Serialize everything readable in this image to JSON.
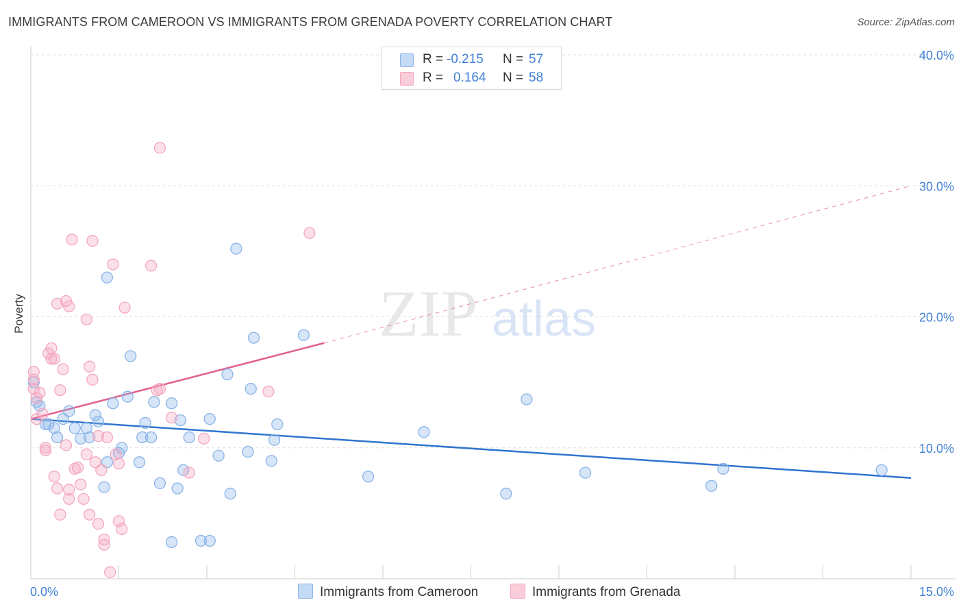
{
  "chart_data": {
    "type": "scatter",
    "title": "IMMIGRANTS FROM CAMEROON VS IMMIGRANTS FROM GRENADA POVERTY CORRELATION CHART",
    "source": "Source: ZipAtlas.com",
    "xlabel": "",
    "ylabel": "Poverty",
    "xlim": [
      0,
      15
    ],
    "ylim": [
      0,
      40
    ],
    "x_tick_labels": [
      "0.0%",
      "15.0%"
    ],
    "y_tick_labels": [
      "10.0%",
      "20.0%",
      "30.0%",
      "40.0%"
    ],
    "y_ticks": [
      10,
      20,
      30,
      40
    ],
    "watermark": {
      "zip": "ZIP",
      "atlas": "atlas"
    },
    "legend": [
      {
        "r_label": "R =",
        "r_value": "-0.215",
        "n_label": "N =",
        "n_value": "57"
      },
      {
        "r_label": "R =",
        "r_value": "0.164",
        "n_label": "N =",
        "n_value": "58"
      }
    ],
    "series": [
      {
        "name": "Immigrants from Cameroon",
        "color": "#8ab4e8",
        "line_color": "#2f74d0",
        "trend": {
          "x0": 0,
          "y0": 12.2,
          "x1": 15,
          "y1": 7.7
        },
        "points": [
          [
            0.05,
            15.0
          ],
          [
            0.1,
            13.5
          ],
          [
            0.15,
            13.2
          ],
          [
            0.25,
            11.8
          ],
          [
            0.3,
            11.8
          ],
          [
            0.4,
            11.5
          ],
          [
            0.45,
            10.8
          ],
          [
            0.55,
            12.2
          ],
          [
            0.65,
            12.8
          ],
          [
            0.75,
            11.5
          ],
          [
            0.85,
            10.7
          ],
          [
            0.95,
            11.5
          ],
          [
            1.0,
            10.8
          ],
          [
            1.1,
            12.5
          ],
          [
            1.15,
            12.0
          ],
          [
            1.3,
            23.0
          ],
          [
            1.5,
            9.6
          ],
          [
            1.4,
            13.4
          ],
          [
            1.65,
            13.9
          ],
          [
            1.7,
            17.0
          ],
          [
            1.9,
            10.8
          ],
          [
            1.95,
            11.9
          ],
          [
            2.05,
            10.8
          ],
          [
            2.1,
            13.5
          ],
          [
            2.4,
            13.4
          ],
          [
            2.55,
            12.1
          ],
          [
            2.7,
            10.8
          ],
          [
            2.6,
            8.3
          ],
          [
            3.05,
            12.2
          ],
          [
            3.2,
            9.4
          ],
          [
            3.35,
            15.6
          ],
          [
            3.5,
            25.2
          ],
          [
            3.7,
            9.7
          ],
          [
            3.75,
            14.5
          ],
          [
            3.8,
            18.4
          ],
          [
            4.2,
            11.8
          ],
          [
            4.15,
            10.6
          ],
          [
            4.1,
            9.0
          ],
          [
            4.65,
            18.6
          ],
          [
            5.75,
            7.8
          ],
          [
            6.7,
            11.2
          ],
          [
            8.1,
            6.5
          ],
          [
            8.45,
            13.7
          ],
          [
            9.45,
            8.1
          ],
          [
            11.6,
            7.1
          ],
          [
            11.8,
            8.4
          ],
          [
            14.5,
            8.3
          ],
          [
            1.3,
            8.9
          ],
          [
            1.55,
            10.0
          ],
          [
            1.85,
            8.9
          ],
          [
            2.2,
            7.3
          ],
          [
            2.5,
            6.9
          ],
          [
            1.25,
            7.0
          ],
          [
            3.4,
            6.5
          ],
          [
            2.4,
            2.8
          ],
          [
            2.9,
            2.9
          ],
          [
            3.05,
            2.9
          ]
        ]
      },
      {
        "name": "Immigrants from Grenada",
        "color": "#f4a7bf",
        "line_color": "#e0608e",
        "trend": {
          "x0": 0,
          "y0": 12.2,
          "x1": 5.0,
          "y1": 18.0
        },
        "trend_extended": {
          "x0": 5.0,
          "y0": 18.0,
          "x1": 15,
          "y1": 30.0
        },
        "points": [
          [
            0.05,
            15.8
          ],
          [
            0.05,
            15.2
          ],
          [
            0.05,
            14.5
          ],
          [
            0.1,
            13.8
          ],
          [
            0.1,
            12.2
          ],
          [
            0.15,
            14.2
          ],
          [
            0.2,
            12.6
          ],
          [
            0.25,
            10.0
          ],
          [
            0.25,
            9.8
          ],
          [
            0.3,
            17.2
          ],
          [
            0.35,
            17.6
          ],
          [
            0.35,
            16.8
          ],
          [
            0.4,
            16.8
          ],
          [
            0.4,
            7.8
          ],
          [
            0.45,
            6.9
          ],
          [
            0.45,
            21.0
          ],
          [
            0.5,
            14.4
          ],
          [
            0.5,
            4.9
          ],
          [
            0.55,
            16.0
          ],
          [
            0.6,
            21.2
          ],
          [
            0.6,
            10.2
          ],
          [
            0.65,
            6.8
          ],
          [
            0.65,
            6.1
          ],
          [
            0.65,
            20.8
          ],
          [
            0.7,
            25.9
          ],
          [
            0.75,
            8.4
          ],
          [
            0.8,
            8.5
          ],
          [
            0.85,
            7.2
          ],
          [
            0.9,
            6.1
          ],
          [
            0.95,
            19.8
          ],
          [
            0.95,
            9.5
          ],
          [
            1.0,
            4.9
          ],
          [
            1.0,
            16.2
          ],
          [
            1.05,
            15.2
          ],
          [
            1.05,
            25.8
          ],
          [
            1.1,
            8.9
          ],
          [
            1.15,
            10.9
          ],
          [
            1.15,
            4.2
          ],
          [
            1.2,
            8.3
          ],
          [
            1.25,
            2.6
          ],
          [
            1.25,
            3.0
          ],
          [
            1.3,
            10.8
          ],
          [
            1.35,
            0.5
          ],
          [
            1.4,
            24.0
          ],
          [
            1.45,
            9.5
          ],
          [
            1.5,
            8.8
          ],
          [
            1.5,
            4.4
          ],
          [
            1.55,
            3.8
          ],
          [
            1.6,
            20.7
          ],
          [
            2.05,
            23.9
          ],
          [
            2.15,
            14.4
          ],
          [
            2.2,
            14.5
          ],
          [
            2.2,
            32.9
          ],
          [
            2.4,
            12.3
          ],
          [
            2.7,
            8.1
          ],
          [
            2.95,
            10.7
          ],
          [
            4.05,
            14.3
          ],
          [
            4.75,
            26.4
          ]
        ]
      }
    ]
  }
}
